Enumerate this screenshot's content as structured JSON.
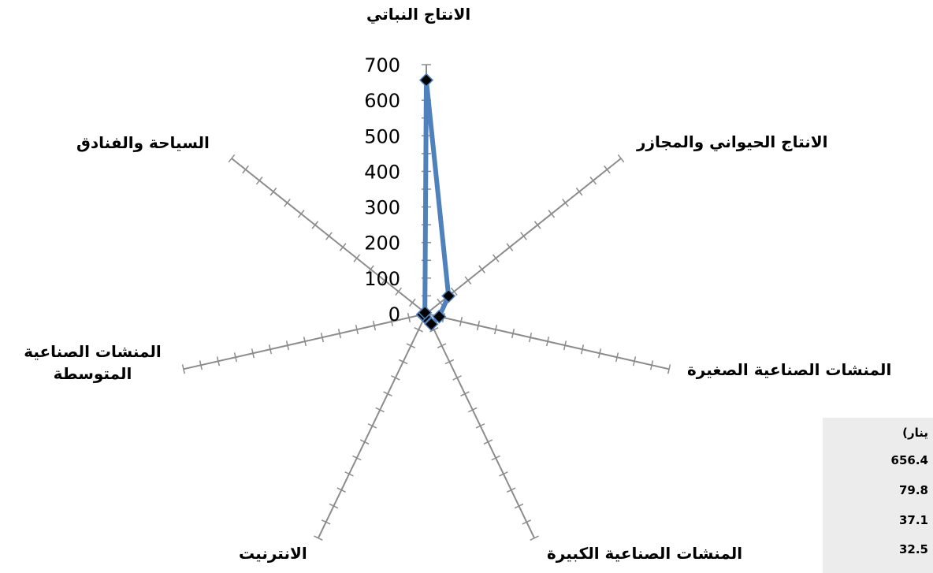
{
  "chart_data": {
    "type": "radar",
    "categories": [
      "الانتاج النباتي",
      "الانتاج الحيواني والمجازر",
      "المنشات الصناعية الصغيرة",
      "المنشات الصناعية الكبيرة",
      "الانترنيت",
      "المنشات الصناعية المتوسطة",
      "السياحة والفنادق"
    ],
    "series": [
      {
        "values": [
          656.4,
          79.8,
          37.1,
          32.5,
          10,
          10,
          5
        ]
      }
    ],
    "rlim": [
      0,
      700
    ],
    "rticks": [
      "0",
      "100",
      "200",
      "300",
      "400",
      "500",
      "600",
      "700"
    ],
    "series_color": "#4f81bd",
    "marker_color": "#000000"
  },
  "side_table": {
    "header": "ينار)",
    "values": [
      "656.4",
      "79.8",
      "37.1",
      "32.5"
    ]
  }
}
